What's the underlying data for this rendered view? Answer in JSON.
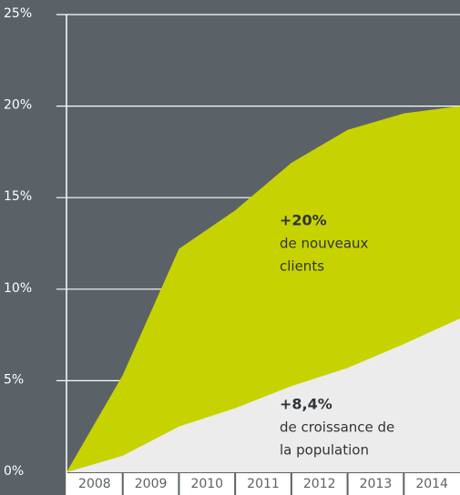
{
  "chart_data": {
    "type": "area",
    "categories": [
      "2008",
      "2009",
      "2010",
      "2011",
      "2012",
      "2013",
      "2014"
    ],
    "series": [
      {
        "name": "de nouveaux clients",
        "color": "#c6d300",
        "values": [
          5.3,
          12.2,
          14.3,
          16.9,
          18.7,
          19.6,
          20
        ]
      },
      {
        "name": "de croissance de la population",
        "color": "#ececec",
        "values": [
          0.9,
          2.5,
          3.5,
          4.7,
          5.7,
          7.0,
          8.4
        ]
      }
    ],
    "ylim": [
      0,
      25
    ],
    "yticks": [
      {
        "value": 0,
        "label": "0%"
      },
      {
        "value": 5,
        "label": "5%"
      },
      {
        "value": 10,
        "label": "10%"
      },
      {
        "value": 15,
        "label": "15%"
      },
      {
        "value": 20,
        "label": "20%"
      },
      {
        "value": 25,
        "label": "25%"
      }
    ],
    "grid": true,
    "annotations": [
      {
        "title": "+20%",
        "lines": [
          "de nouveaux",
          "clients"
        ]
      },
      {
        "title": "+8,4%",
        "lines": [
          "de croissance de",
          "la population"
        ]
      }
    ]
  }
}
